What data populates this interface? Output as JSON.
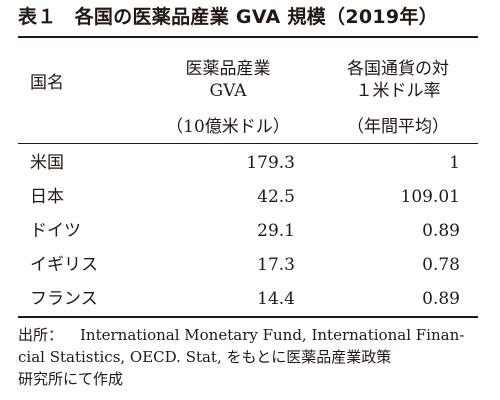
{
  "table": {
    "title_label": "表１",
    "title_text": "各国の医薬品産業 GVA 規模（2019年）",
    "headers": {
      "country": "国名",
      "gva_line1": "医薬品産業",
      "gva_line2": "GVA",
      "gva_unit": "（10億米ドル）",
      "rate_line1": "各国通貨の対",
      "rate_line2": "１米ドル率",
      "rate_unit": "（年間平均）"
    },
    "rows": [
      {
        "country": "米国",
        "gva": "179.3",
        "rate": "1"
      },
      {
        "country": "日本",
        "gva": "42.5",
        "rate": "109.01"
      },
      {
        "country": "ドイツ",
        "gva": "29.1",
        "rate": "0.89"
      },
      {
        "country": "イギリス",
        "gva": "17.3",
        "rate": "0.78"
      },
      {
        "country": "フランス",
        "gva": "14.4",
        "rate": "0.89"
      }
    ]
  },
  "source": {
    "label": "出所：",
    "line1": "International Monetary Fund, International Finan-",
    "line2": "cial Statistics, OECD. Stat, をもとに医薬品産業政策",
    "line3": "研究所にて作成"
  }
}
